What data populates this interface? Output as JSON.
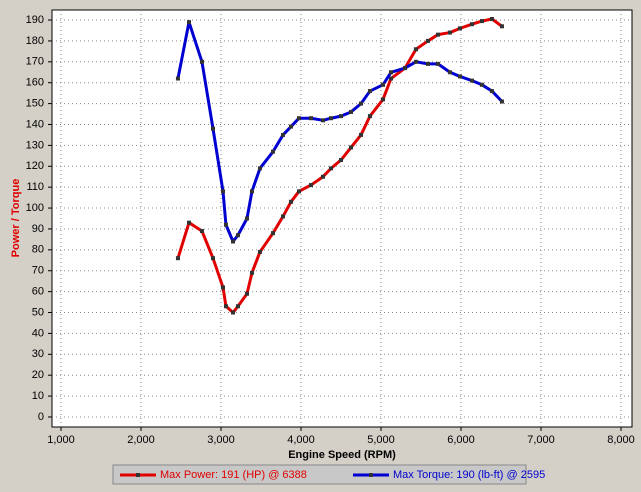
{
  "chart_data": {
    "type": "line",
    "x_label": "Engine Speed (RPM)",
    "y_label": "Power / Torque",
    "x": [
      2462,
      2600,
      2762,
      2900,
      3025,
      3062,
      3150,
      3212,
      3325,
      3387,
      3487,
      3650,
      3775,
      3875,
      3975,
      4125,
      4275,
      4375,
      4500,
      4625,
      4750,
      4862,
      5025,
      5125,
      5300,
      5437,
      5587,
      5712,
      5862,
      5987,
      6137,
      6262,
      6387,
      6512
    ],
    "series": [
      {
        "name": "Max Power: 191 (HP) @ 6388",
        "color": "#e00000",
        "values": [
          76,
          93,
          89,
          76,
          62,
          53,
          50,
          53,
          59,
          69,
          79,
          88,
          96,
          103,
          108,
          111,
          115,
          119,
          123,
          129,
          135,
          144,
          152,
          162,
          167,
          176,
          180,
          183,
          184,
          186,
          188,
          189.5,
          190.5,
          187
        ]
      },
      {
        "name": "Max Torque: 190 (lb-ft) @ 2595",
        "color": "#0000d0",
        "values": [
          162,
          189,
          170,
          138,
          108,
          92,
          84,
          87,
          95,
          108,
          119,
          127,
          135,
          139,
          143,
          143,
          142,
          143,
          144,
          146,
          150,
          156,
          159,
          165,
          167,
          170,
          169,
          169,
          165,
          163,
          161,
          159,
          156,
          151
        ]
      }
    ],
    "xlim": [
      887.5,
      8137.5
    ],
    "xticks": [
      {
        "value": 1000,
        "label": "1,000"
      },
      {
        "value": 2000,
        "label": "2,000"
      },
      {
        "value": 3000,
        "label": "3,000"
      },
      {
        "value": 4000,
        "label": "4,000"
      },
      {
        "value": 5000,
        "label": "5,000"
      },
      {
        "value": 6000,
        "label": "6,000"
      },
      {
        "value": 7000,
        "label": "7,000"
      },
      {
        "value": 8000,
        "label": "8,000"
      }
    ],
    "ylim": [
      -4.8,
      194.8
    ],
    "yticks": [
      0,
      10,
      20,
      30,
      40,
      50,
      60,
      70,
      80,
      90,
      100,
      110,
      120,
      130,
      140,
      150,
      160,
      170,
      180,
      190
    ],
    "grid": true
  }
}
